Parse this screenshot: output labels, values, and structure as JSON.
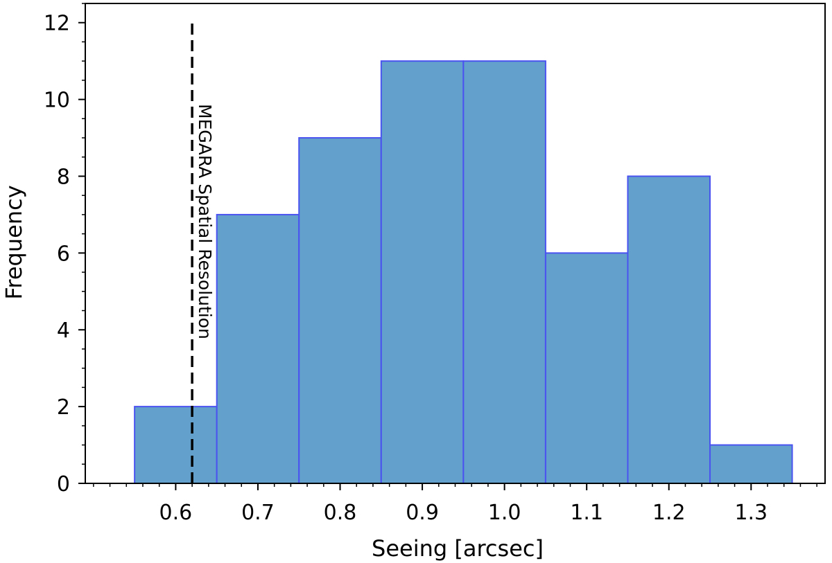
{
  "chart_data": {
    "type": "bar",
    "subtype": "histogram",
    "bins": [
      {
        "x0": 0.55,
        "x1": 0.65,
        "value": 2
      },
      {
        "x0": 0.65,
        "x1": 0.75,
        "value": 7
      },
      {
        "x0": 0.75,
        "x1": 0.85,
        "value": 9
      },
      {
        "x0": 0.85,
        "x1": 0.95,
        "value": 11
      },
      {
        "x0": 0.95,
        "x1": 1.05,
        "value": 11
      },
      {
        "x0": 1.05,
        "x1": 1.15,
        "value": 6
      },
      {
        "x0": 1.15,
        "x1": 1.25,
        "value": 8
      },
      {
        "x0": 1.25,
        "x1": 1.35,
        "value": 1
      }
    ],
    "xlabel": "Seeing [arcsec]",
    "ylabel": "Frequency",
    "xlim": [
      0.49,
      1.39
    ],
    "ylim": [
      0,
      12.5
    ],
    "xticks": [
      0.6,
      0.7,
      0.8,
      0.9,
      1.0,
      1.1,
      1.2,
      1.3
    ],
    "xtick_labels": [
      "0.6",
      "0.7",
      "0.8",
      "0.9",
      "1.0",
      "1.1",
      "1.2",
      "1.3"
    ],
    "yticks": [
      0,
      2,
      4,
      6,
      8,
      10,
      12
    ],
    "ytick_labels": [
      "0",
      "2",
      "4",
      "6",
      "8",
      "10",
      "12"
    ],
    "grid": false,
    "bar_fill_color": "#63a0cb",
    "bar_edge_color": "#4a52f0",
    "reference_line": {
      "x": 0.62,
      "y0": 0,
      "y1": 12,
      "style": "dashed",
      "color": "#000000",
      "label": "MEGARA Spatial Resolution"
    }
  }
}
